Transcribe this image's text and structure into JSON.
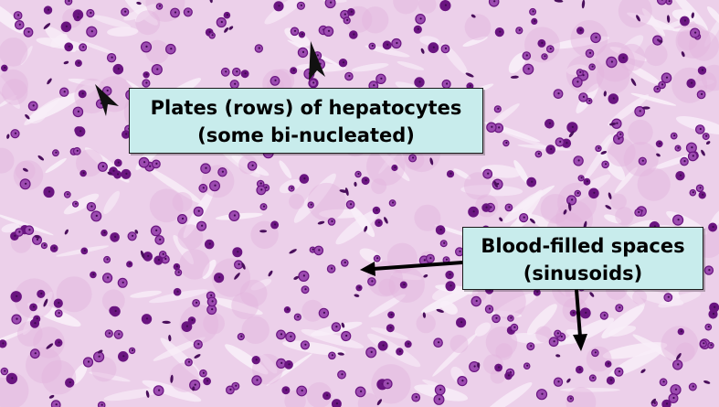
{
  "image": {
    "subject": "liver histology micrograph, H&E stain",
    "colors": {
      "background": "#ecd0ea",
      "cytoplasm": "#e3b3de",
      "sinusoid": "#f8eef8",
      "nucleus": "#6a1580",
      "nucleus_light": "#9c4bb0",
      "label_fill": "#c8ecec",
      "label_border": "#1a1a1a",
      "arrow": "#000000"
    }
  },
  "annotations": {
    "hepatocytes": {
      "line1": "Plates (rows) of hepatocytes",
      "line2": "(some bi-nucleated)"
    },
    "sinusoids": {
      "line1": "Blood-filled spaces",
      "line2": "(sinusoids)"
    }
  },
  "markers": {
    "arrowheads": [
      "arrowhead-icon",
      "arrowhead-icon"
    ],
    "arrows": [
      "arrow-icon",
      "arrow-icon"
    ]
  }
}
